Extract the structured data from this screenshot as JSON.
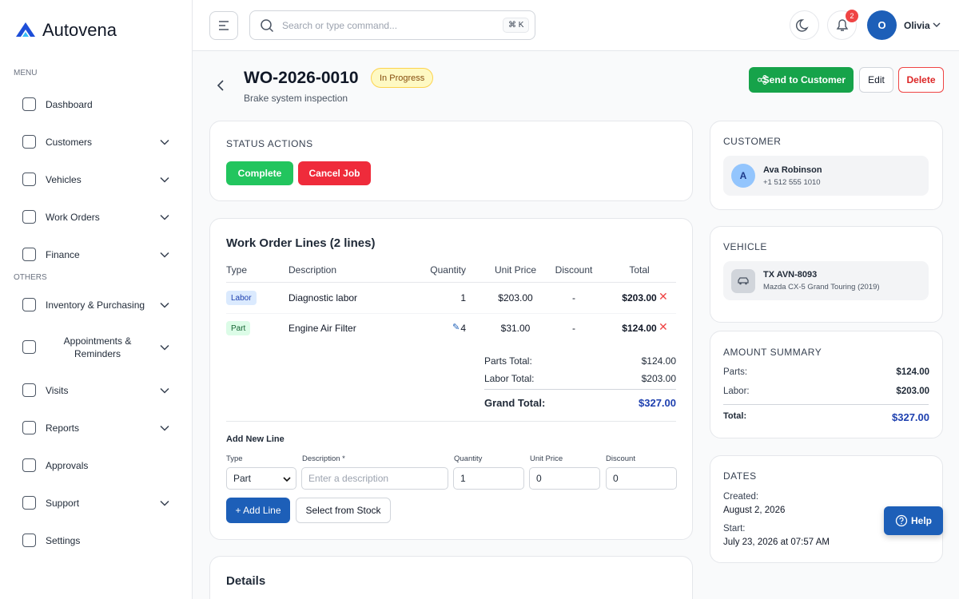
{
  "brand": "Autovena",
  "sidebar": {
    "sections": [
      {
        "label": "MENU",
        "items": [
          {
            "label": "Dashboard",
            "expandable": false
          },
          {
            "label": "Customers",
            "expandable": true
          },
          {
            "label": "Vehicles",
            "expandable": true
          },
          {
            "label": "Work Orders",
            "expandable": true
          },
          {
            "label": "Finance",
            "expandable": true
          }
        ]
      },
      {
        "label": "OTHERS",
        "items": [
          {
            "label": "Inventory & Purchasing",
            "expandable": true
          },
          {
            "label": "Appointments & Reminders",
            "expandable": true
          },
          {
            "label": "Visits",
            "expandable": true
          },
          {
            "label": "Reports",
            "expandable": true
          },
          {
            "label": "Approvals",
            "expandable": false
          },
          {
            "label": "Support",
            "expandable": true
          },
          {
            "label": "Settings",
            "expandable": false
          }
        ]
      }
    ]
  },
  "topbar": {
    "search_placeholder": "Search or type command...",
    "shortcut": "⌘ K",
    "notifications": "2",
    "avatar": "O",
    "user": "Olivia"
  },
  "header": {
    "title": "WO-2026-0010",
    "status": "In Progress",
    "subtitle": "Brake system inspection",
    "actions": [
      "Send to Customer",
      "Edit",
      "Delete"
    ]
  },
  "status_actions": {
    "title": "STATUS ACTIONS",
    "buttons": [
      "Complete",
      "Cancel Job"
    ]
  },
  "lines": {
    "title": "Work Order Lines (2 lines)",
    "columns": [
      "Type",
      "Description",
      "Quantity",
      "Unit Price",
      "Discount",
      "Total"
    ],
    "rows": [
      {
        "type": "Labor",
        "badge_color": "#dbeafe",
        "badge_text_color": "#1e40af",
        "description": "Diagnostic labor",
        "quantity": "1",
        "editable": false,
        "unit_price": "$203.00",
        "discount": "-",
        "total": "$203.00"
      },
      {
        "type": "Part",
        "badge_color": "#dcfce7",
        "badge_text_color": "#166534",
        "description": "Engine Air Filter",
        "quantity": "4",
        "editable": true,
        "unit_price": "$31.00",
        "discount": "-",
        "total": "$124.00"
      }
    ],
    "totals": [
      {
        "label": "Parts Total:",
        "value": "$124.00"
      },
      {
        "label": "Labor Total:",
        "value": "$203.00"
      }
    ],
    "grand_total": {
      "label": "Grand Total:",
      "value": "$327.00"
    }
  },
  "add_line": {
    "title": "Add New Line",
    "fields": [
      {
        "label": "Type",
        "value": "Part"
      },
      {
        "label": "Description *",
        "placeholder": "Enter a description"
      },
      {
        "label": "Quantity",
        "value": "1"
      },
      {
        "label": "Unit Price",
        "value": "0"
      },
      {
        "label": "Discount",
        "value": "0"
      }
    ],
    "buttons": [
      "+ Add Line",
      "Select from Stock"
    ]
  },
  "details": {
    "title": "Details"
  },
  "customer": {
    "title": "CUSTOMER",
    "initial": "A",
    "name": "Ava Robinson",
    "phone": "+1 512 555 1010"
  },
  "vehicle": {
    "title": "VEHICLE",
    "plate": "TX AVN-8093",
    "model": "Mazda CX-5 Grand Touring (2019)"
  },
  "amount_summary": {
    "title": "AMOUNT SUMMARY",
    "rows": [
      {
        "label": "Parts:",
        "value": "$124.00"
      },
      {
        "label": "Labor:",
        "value": "$203.00"
      }
    ],
    "total": {
      "label": "Total:",
      "value": "$327.00"
    }
  },
  "dates": {
    "title": "DATES",
    "rows": [
      {
        "label": "Created:",
        "value": "August 2, 2026"
      },
      {
        "label": "Start:",
        "value": "July 23, 2026 at 07:57 AM"
      }
    ]
  },
  "help": "Help"
}
